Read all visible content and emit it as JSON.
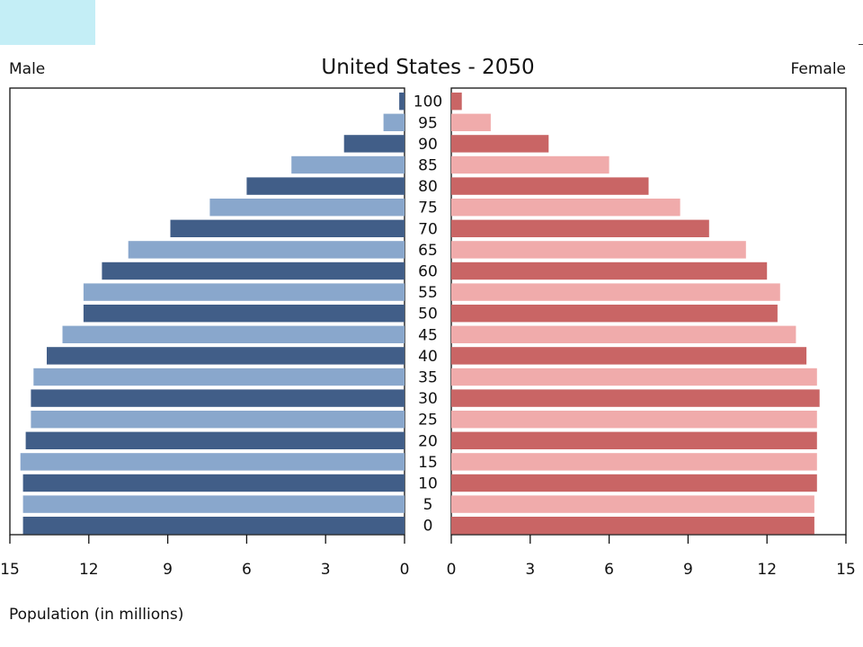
{
  "chart_data": {
    "type": "bar",
    "title": "United States - 2050",
    "left_label": "Male",
    "right_label": "Female",
    "xlabel": "Population (in millions)",
    "xlim": [
      0,
      15
    ],
    "ticks": [
      0,
      3,
      6,
      9,
      12,
      15
    ],
    "categories": [
      "100",
      "95",
      "90",
      "85",
      "80",
      "75",
      "70",
      "65",
      "60",
      "55",
      "50",
      "45",
      "40",
      "35",
      "30",
      "25",
      "20",
      "15",
      "10",
      "5",
      "0"
    ],
    "series": [
      {
        "name": "Male",
        "values": [
          0.2,
          0.8,
          2.3,
          4.3,
          6.0,
          7.4,
          8.9,
          10.5,
          11.5,
          12.2,
          12.2,
          13.0,
          13.6,
          14.1,
          14.2,
          14.2,
          14.4,
          14.6,
          14.5,
          14.5,
          14.5
        ],
        "colors": [
          "#415e88",
          "#89a7cc"
        ]
      },
      {
        "name": "Female",
        "values": [
          0.4,
          1.5,
          3.7,
          6.0,
          7.5,
          8.7,
          9.8,
          11.2,
          12.0,
          12.5,
          12.4,
          13.1,
          13.5,
          13.9,
          14.0,
          13.9,
          13.9,
          13.9,
          13.9,
          13.8,
          13.8
        ],
        "colors": [
          "#c96565",
          "#f0abab"
        ]
      }
    ]
  }
}
